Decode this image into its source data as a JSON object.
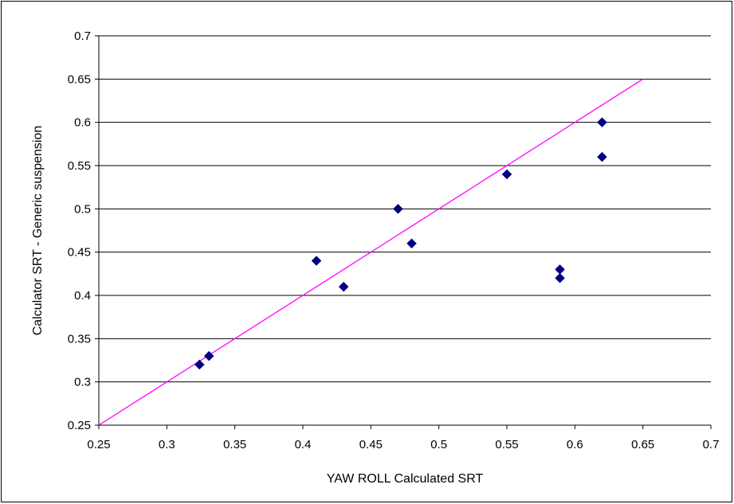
{
  "chart_data": {
    "type": "scatter",
    "title": "",
    "xlabel": "YAW ROLL Calculated SRT",
    "ylabel": "Calculator SRT - Generic suspension",
    "xlim": [
      0.25,
      0.7
    ],
    "ylim": [
      0.25,
      0.7
    ],
    "x_ticks": [
      "0.25",
      "0.3",
      "0.35",
      "0.4",
      "0.45",
      "0.5",
      "0.55",
      "0.6",
      "0.65",
      "0.7"
    ],
    "y_ticks": [
      "0.25",
      "0.3",
      "0.35",
      "0.4",
      "0.45",
      "0.5",
      "0.55",
      "0.6",
      "0.65",
      "0.7"
    ],
    "grid": "horizontal",
    "legend": "none",
    "series": [
      {
        "marker": "diamond",
        "color": "#000080",
        "points": [
          {
            "x": 0.324,
            "y": 0.32
          },
          {
            "x": 0.331,
            "y": 0.33
          },
          {
            "x": 0.41,
            "y": 0.44
          },
          {
            "x": 0.43,
            "y": 0.41
          },
          {
            "x": 0.47,
            "y": 0.5
          },
          {
            "x": 0.48,
            "y": 0.46
          },
          {
            "x": 0.55,
            "y": 0.54
          },
          {
            "x": 0.589,
            "y": 0.43
          },
          {
            "x": 0.589,
            "y": 0.42
          },
          {
            "x": 0.62,
            "y": 0.6
          },
          {
            "x": 0.62,
            "y": 0.56
          }
        ]
      }
    ],
    "reference_line": {
      "color": "#ff00ff",
      "points": [
        [
          0.25,
          0.25
        ],
        [
          0.65,
          0.65
        ]
      ]
    }
  }
}
